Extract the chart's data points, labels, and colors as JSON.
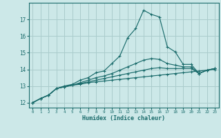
{
  "title": "",
  "xlabel": "Humidex (Indice chaleur)",
  "background_color": "#cce8e8",
  "grid_color": "#aacccc",
  "line_color": "#1a6b6b",
  "xlim": [
    -0.5,
    23.5
  ],
  "ylim": [
    11.7,
    18.0
  ],
  "yticks": [
    12,
    13,
    14,
    15,
    16,
    17
  ],
  "xticks": [
    0,
    1,
    2,
    3,
    4,
    5,
    6,
    7,
    8,
    9,
    10,
    11,
    12,
    13,
    14,
    15,
    16,
    17,
    18,
    19,
    20,
    21,
    22,
    23
  ],
  "lines": [
    {
      "x": [
        0,
        1,
        2,
        3,
        4,
        5,
        6,
        7,
        8,
        9,
        10,
        11,
        12,
        13,
        14,
        15,
        16,
        17,
        18,
        19,
        20,
        21,
        22,
        23
      ],
      "y": [
        12.0,
        12.25,
        12.45,
        12.85,
        12.95,
        13.05,
        13.1,
        13.2,
        13.25,
        13.3,
        13.35,
        13.4,
        13.45,
        13.5,
        13.55,
        13.6,
        13.65,
        13.7,
        13.75,
        13.8,
        13.85,
        13.9,
        13.95,
        14.0
      ]
    },
    {
      "x": [
        0,
        1,
        2,
        3,
        4,
        5,
        6,
        7,
        8,
        9,
        10,
        11,
        12,
        13,
        14,
        15,
        16,
        17,
        18,
        19,
        20,
        21,
        22,
        23
      ],
      "y": [
        12.0,
        12.25,
        12.45,
        12.85,
        12.95,
        13.05,
        13.15,
        13.25,
        13.35,
        13.45,
        13.55,
        13.65,
        13.75,
        13.85,
        13.95,
        14.05,
        14.1,
        14.05,
        14.05,
        14.05,
        14.05,
        13.75,
        13.95,
        14.05
      ]
    },
    {
      "x": [
        0,
        1,
        2,
        3,
        4,
        5,
        6,
        7,
        8,
        9,
        10,
        11,
        12,
        13,
        14,
        15,
        16,
        17,
        18,
        19,
        20,
        21,
        22,
        23
      ],
      "y": [
        12.0,
        12.25,
        12.45,
        12.85,
        12.95,
        13.05,
        13.2,
        13.35,
        13.5,
        13.6,
        13.75,
        13.95,
        14.15,
        14.35,
        14.55,
        14.65,
        14.6,
        14.35,
        14.25,
        14.15,
        14.15,
        13.75,
        13.95,
        14.05
      ]
    },
    {
      "x": [
        0,
        1,
        2,
        3,
        4,
        5,
        6,
        7,
        8,
        9,
        10,
        11,
        12,
        13,
        14,
        15,
        16,
        17,
        18,
        19,
        20,
        21,
        22,
        23
      ],
      "y": [
        12.0,
        12.25,
        12.45,
        12.85,
        13.0,
        13.1,
        13.35,
        13.5,
        13.8,
        13.9,
        14.35,
        14.8,
        15.9,
        16.45,
        17.55,
        17.3,
        17.15,
        15.35,
        15.05,
        14.3,
        14.3,
        13.75,
        13.95,
        14.05
      ]
    }
  ]
}
